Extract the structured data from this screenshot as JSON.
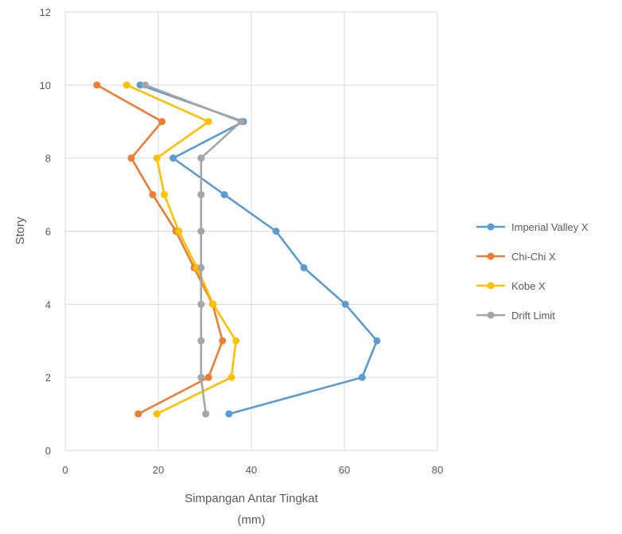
{
  "chart_data": {
    "type": "scatter",
    "xlabel": "Simpangan Antar Tingkat",
    "xlabel_unit": "(mm)",
    "ylabel": "Story",
    "xlim": [
      0,
      80
    ],
    "ylim": [
      0,
      12
    ],
    "x_ticks": [
      "0",
      "20",
      "40",
      "60",
      "80"
    ],
    "y_ticks": [
      "0",
      "2",
      "4",
      "6",
      "8",
      "10",
      "12"
    ],
    "grid": true,
    "legend_position": "right",
    "series": [
      {
        "name": "Imperial Valley X",
        "color": "#5b9bd5",
        "points": [
          [
            35.2,
            1
          ],
          [
            63.8,
            2
          ],
          [
            67,
            3
          ],
          [
            60.2,
            4
          ],
          [
            51.3,
            5
          ],
          [
            45.3,
            6
          ],
          [
            34.2,
            7
          ],
          [
            23.2,
            8
          ],
          [
            38.3,
            9
          ],
          [
            16.1,
            10
          ]
        ]
      },
      {
        "name": "Chi-Chi X",
        "color": "#ed7d31",
        "points": [
          [
            15.7,
            1
          ],
          [
            30.8,
            2
          ],
          [
            33.8,
            3
          ],
          [
            31.7,
            4
          ],
          [
            27.7,
            5
          ],
          [
            23.8,
            6
          ],
          [
            18.8,
            7
          ],
          [
            14.2,
            8
          ],
          [
            20.8,
            9
          ],
          [
            6.8,
            10
          ]
        ]
      },
      {
        "name": "Kobe X",
        "color": "#ffc000",
        "points": [
          [
            19.7,
            1
          ],
          [
            35.7,
            2
          ],
          [
            36.7,
            3
          ],
          [
            31.8,
            4
          ],
          [
            28.3,
            5
          ],
          [
            24.4,
            6
          ],
          [
            21.3,
            7
          ],
          [
            19.7,
            8
          ],
          [
            30.8,
            9
          ],
          [
            13.2,
            10
          ]
        ]
      },
      {
        "name": "Drift Limit",
        "color": "#a5a5a5",
        "points": [
          [
            30.2,
            1
          ],
          [
            29.2,
            2
          ],
          [
            29.2,
            3
          ],
          [
            29.2,
            4
          ],
          [
            29.2,
            5
          ],
          [
            29.2,
            6
          ],
          [
            29.2,
            7
          ],
          [
            29.2,
            8
          ],
          [
            37.8,
            9
          ],
          [
            17.2,
            10
          ]
        ]
      }
    ]
  }
}
